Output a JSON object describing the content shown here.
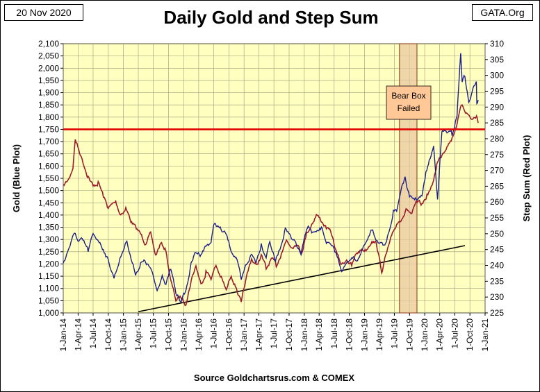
{
  "header": {
    "date": "20 Nov 2020",
    "brand": "GATA.Org"
  },
  "chart_data": {
    "type": "line",
    "title": "Daily Gold and Step Sum",
    "source": "Source Goldchartsrus.com & COMEX",
    "ylabel_left": "Gold   (Blue Plot)",
    "ylabel_right": "Step Sum   (Red Plot)",
    "xlim": [
      "2014-01-01",
      "2021-01-01"
    ],
    "ylim_left": [
      1000,
      2100
    ],
    "ylim_right": [
      225,
      310
    ],
    "yticks_left": [
      1000,
      1050,
      1100,
      1150,
      1200,
      1250,
      1300,
      1350,
      1400,
      1450,
      1500,
      1550,
      1600,
      1650,
      1700,
      1750,
      1800,
      1850,
      1900,
      1950,
      2000,
      2050,
      2100
    ],
    "yticklabels_left": [
      "1,000",
      "1,050",
      "1,100",
      "1,150",
      "1,200",
      "1,250",
      "1,300",
      "1,350",
      "1,400",
      "1,450",
      "1,500",
      "1,550",
      "1,600",
      "1,650",
      "1,700",
      "1,750",
      "1,800",
      "1,850",
      "1,900",
      "1,950",
      "2,000",
      "2,050",
      "2,100"
    ],
    "yticks_right": [
      225,
      230,
      235,
      240,
      245,
      250,
      255,
      260,
      265,
      270,
      275,
      280,
      285,
      290,
      295,
      300,
      305,
      310
    ],
    "xtick_labels": [
      "1-Jan-14",
      "1-Apr-14",
      "1-Jul-14",
      "1-Oct-14",
      "1-Jan-15",
      "1-Apr-15",
      "1-Jul-15",
      "1-Oct-15",
      "1-Jan-16",
      "1-Apr-16",
      "1-Jul-16",
      "1-Oct-16",
      "1-Jan-17",
      "1-Apr-17",
      "1-Jul-17",
      "1-Oct-17",
      "1-Jan-18",
      "1-Apr-18",
      "1-Jul-18",
      "1-Oct-18",
      "1-Jan-19",
      "1-Apr-19",
      "1-Jul-19",
      "1-Oct-19",
      "1-Jan-20",
      "1-Apr-20",
      "1-Jul-20",
      "1-Oct-20",
      "1-Jan-21"
    ],
    "series": [
      {
        "name": "Gold",
        "axis": "left",
        "color": "#1a1f8c",
        "points": [
          [
            "2014-01-01",
            1205
          ],
          [
            "2014-02-01",
            1260
          ],
          [
            "2014-03-15",
            1330
          ],
          [
            "2014-04-01",
            1290
          ],
          [
            "2014-05-01",
            1295
          ],
          [
            "2014-06-01",
            1255
          ],
          [
            "2014-07-01",
            1320
          ],
          [
            "2014-08-01",
            1300
          ],
          [
            "2014-09-01",
            1260
          ],
          [
            "2014-10-01",
            1215
          ],
          [
            "2014-11-05",
            1145
          ],
          [
            "2014-12-01",
            1200
          ],
          [
            "2015-01-22",
            1300
          ],
          [
            "2015-02-15",
            1225
          ],
          [
            "2015-03-15",
            1160
          ],
          [
            "2015-04-15",
            1200
          ],
          [
            "2015-05-15",
            1210
          ],
          [
            "2015-06-15",
            1180
          ],
          [
            "2015-07-24",
            1090
          ],
          [
            "2015-08-24",
            1160
          ],
          [
            "2015-09-15",
            1110
          ],
          [
            "2015-10-15",
            1180
          ],
          [
            "2015-11-15",
            1080
          ],
          [
            "2015-12-17",
            1050
          ],
          [
            "2016-01-15",
            1090
          ],
          [
            "2016-02-15",
            1200
          ],
          [
            "2016-03-15",
            1250
          ],
          [
            "2016-04-15",
            1240
          ],
          [
            "2016-05-15",
            1275
          ],
          [
            "2016-06-15",
            1290
          ],
          [
            "2016-07-06",
            1370
          ],
          [
            "2016-08-15",
            1340
          ],
          [
            "2016-09-15",
            1320
          ],
          [
            "2016-10-15",
            1255
          ],
          [
            "2016-11-15",
            1225
          ],
          [
            "2016-12-15",
            1130
          ],
          [
            "2017-01-15",
            1200
          ],
          [
            "2017-02-15",
            1240
          ],
          [
            "2017-03-15",
            1210
          ],
          [
            "2017-04-15",
            1280
          ],
          [
            "2017-05-15",
            1230
          ],
          [
            "2017-06-06",
            1295
          ],
          [
            "2017-07-10",
            1210
          ],
          [
            "2017-08-15",
            1280
          ],
          [
            "2017-09-08",
            1350
          ],
          [
            "2017-10-15",
            1300
          ],
          [
            "2017-11-15",
            1280
          ],
          [
            "2017-12-12",
            1240
          ],
          [
            "2018-01-25",
            1360
          ],
          [
            "2018-02-15",
            1330
          ],
          [
            "2018-03-15",
            1325
          ],
          [
            "2018-04-15",
            1345
          ],
          [
            "2018-05-15",
            1290
          ],
          [
            "2018-06-15",
            1270
          ],
          [
            "2018-07-15",
            1240
          ],
          [
            "2018-08-16",
            1175
          ],
          [
            "2018-09-15",
            1200
          ],
          [
            "2018-10-15",
            1230
          ],
          [
            "2018-11-15",
            1215
          ],
          [
            "2018-12-15",
            1250
          ],
          [
            "2019-01-15",
            1290
          ],
          [
            "2019-02-20",
            1340
          ],
          [
            "2019-03-15",
            1300
          ],
          [
            "2019-04-23",
            1270
          ],
          [
            "2019-05-15",
            1285
          ],
          [
            "2019-06-25",
            1420
          ],
          [
            "2019-07-15",
            1415
          ],
          [
            "2019-08-15",
            1520
          ],
          [
            "2019-09-04",
            1550
          ],
          [
            "2019-10-01",
            1470
          ],
          [
            "2019-11-15",
            1465
          ],
          [
            "2019-12-15",
            1475
          ],
          [
            "2020-01-08",
            1570
          ],
          [
            "2020-02-24",
            1680
          ],
          [
            "2020-03-19",
            1470
          ],
          [
            "2020-04-14",
            1740
          ],
          [
            "2020-05-15",
            1740
          ],
          [
            "2020-06-15",
            1730
          ],
          [
            "2020-07-15",
            1810
          ],
          [
            "2020-08-06",
            2065
          ],
          [
            "2020-08-15",
            1950
          ],
          [
            "2020-09-01",
            1970
          ],
          [
            "2020-09-24",
            1860
          ],
          [
            "2020-10-15",
            1900
          ],
          [
            "2020-11-09",
            1950
          ],
          [
            "2020-11-12",
            1860
          ],
          [
            "2020-11-20",
            1870
          ]
        ]
      },
      {
        "name": "Step Sum",
        "axis": "right",
        "color": "#9b1b2c",
        "points": [
          [
            "2014-01-01",
            265
          ],
          [
            "2014-02-01",
            267
          ],
          [
            "2014-03-01",
            271
          ],
          [
            "2014-03-15",
            280
          ],
          [
            "2014-04-15",
            275
          ],
          [
            "2014-06-01",
            268
          ],
          [
            "2014-07-01",
            265
          ],
          [
            "2014-08-01",
            266
          ],
          [
            "2014-09-01",
            262
          ],
          [
            "2014-10-01",
            258
          ],
          [
            "2014-11-15",
            260
          ],
          [
            "2014-12-15",
            256
          ],
          [
            "2015-01-15",
            258
          ],
          [
            "2015-02-15",
            254
          ],
          [
            "2015-03-15",
            252
          ],
          [
            "2015-04-15",
            250
          ],
          [
            "2015-05-15",
            247
          ],
          [
            "2015-06-15",
            250
          ],
          [
            "2015-07-15",
            243
          ],
          [
            "2015-08-15",
            247
          ],
          [
            "2015-09-15",
            245
          ],
          [
            "2015-10-15",
            235
          ],
          [
            "2015-11-15",
            229
          ],
          [
            "2015-12-15",
            230
          ],
          [
            "2016-01-15",
            228
          ],
          [
            "2016-02-15",
            235
          ],
          [
            "2016-03-15",
            240
          ],
          [
            "2016-04-15",
            234
          ],
          [
            "2016-05-15",
            238
          ],
          [
            "2016-06-15",
            236
          ],
          [
            "2016-07-15",
            240
          ],
          [
            "2016-08-15",
            236
          ],
          [
            "2016-09-15",
            232
          ],
          [
            "2016-10-15",
            237
          ],
          [
            "2016-11-15",
            233
          ],
          [
            "2016-12-15",
            228
          ],
          [
            "2017-01-15",
            236
          ],
          [
            "2017-02-15",
            242
          ],
          [
            "2017-03-15",
            240
          ],
          [
            "2017-04-15",
            243
          ],
          [
            "2017-05-15",
            239
          ],
          [
            "2017-06-15",
            242
          ],
          [
            "2017-07-15",
            240
          ],
          [
            "2017-08-15",
            244
          ],
          [
            "2017-09-15",
            248
          ],
          [
            "2017-10-15",
            246
          ],
          [
            "2017-11-15",
            247
          ],
          [
            "2017-12-15",
            244
          ],
          [
            "2018-01-15",
            250
          ],
          [
            "2018-02-15",
            253
          ],
          [
            "2018-03-15",
            256
          ],
          [
            "2018-04-15",
            254
          ],
          [
            "2018-05-15",
            252
          ],
          [
            "2018-06-15",
            250
          ],
          [
            "2018-07-15",
            244
          ],
          [
            "2018-08-15",
            240
          ],
          [
            "2018-09-15",
            242
          ],
          [
            "2018-10-15",
            240
          ],
          [
            "2018-11-15",
            244
          ],
          [
            "2018-12-15",
            245
          ],
          [
            "2019-01-15",
            245
          ],
          [
            "2019-02-15",
            248
          ],
          [
            "2019-03-15",
            247
          ],
          [
            "2019-04-15",
            238
          ],
          [
            "2019-05-15",
            244
          ],
          [
            "2019-06-15",
            249
          ],
          [
            "2019-07-15",
            253
          ],
          [
            "2019-08-15",
            255
          ],
          [
            "2019-09-15",
            258
          ],
          [
            "2019-10-15",
            256
          ],
          [
            "2019-11-15",
            260
          ],
          [
            "2019-12-15",
            259
          ],
          [
            "2020-01-15",
            262
          ],
          [
            "2020-02-15",
            265
          ],
          [
            "2020-03-15",
            272
          ],
          [
            "2020-04-15",
            275
          ],
          [
            "2020-05-15",
            278
          ],
          [
            "2020-06-15",
            280
          ],
          [
            "2020-07-15",
            285
          ],
          [
            "2020-08-15",
            291
          ],
          [
            "2020-09-15",
            288
          ],
          [
            "2020-10-15",
            286
          ],
          [
            "2020-11-10",
            287
          ],
          [
            "2020-11-20",
            285
          ]
        ]
      }
    ],
    "reference_line": {
      "axis": "left",
      "value": 1750,
      "color": "#e00000"
    },
    "trend_line": {
      "axis": "left",
      "start": [
        "2015-04-01",
        1005
      ],
      "end": [
        "2020-09-01",
        1275
      ],
      "color": "#000000"
    },
    "annotation_box": {
      "text_lines": [
        "Bear Box",
        "Failed"
      ],
      "x_start": "2019-08-01",
      "x_end": "2019-11-15",
      "fill": "#ffc896",
      "stroke": "#a05030"
    },
    "grid": true,
    "legend": "none",
    "plot_background": "#ffffc0"
  }
}
